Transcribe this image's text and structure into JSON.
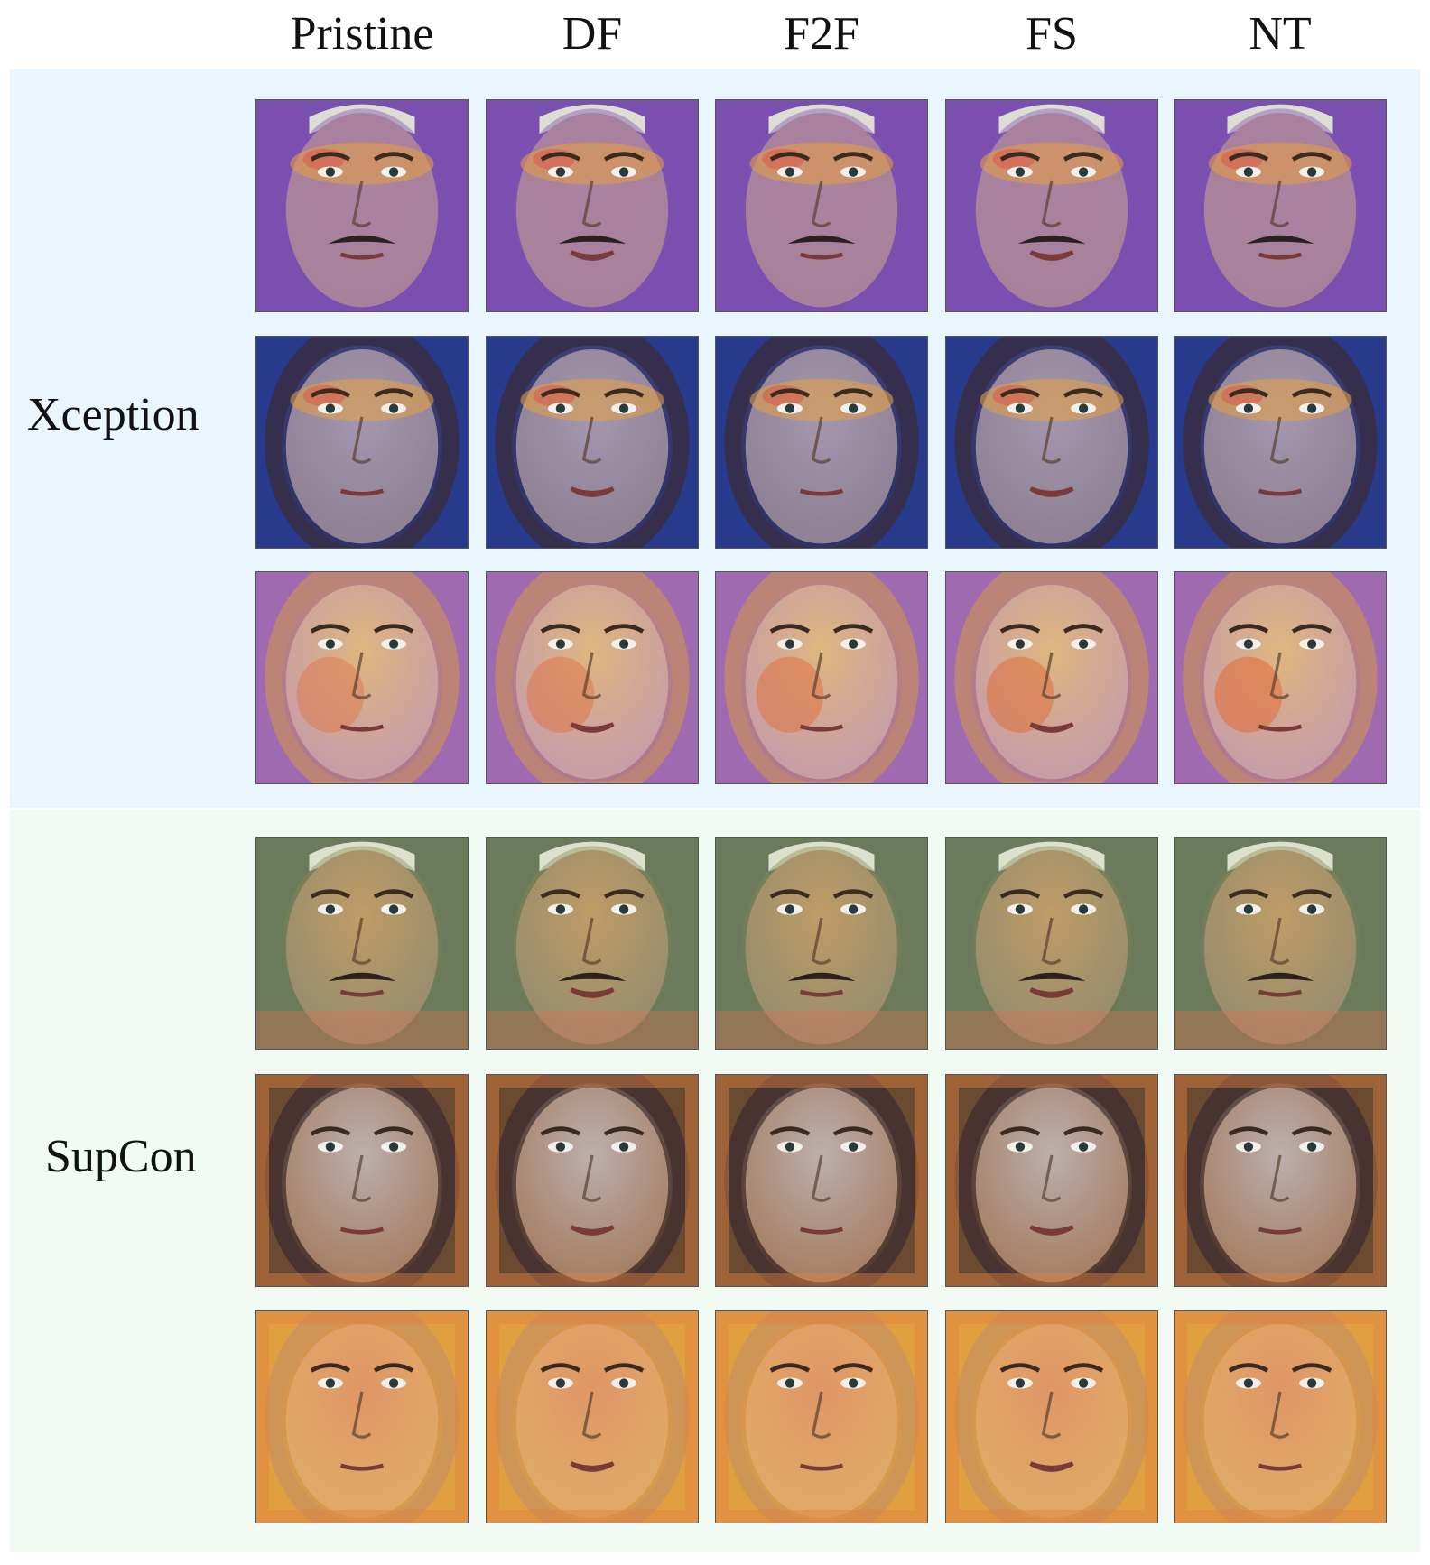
{
  "columns": [
    "Pristine",
    "DF",
    "F2F",
    "FS",
    "NT"
  ],
  "models": [
    {
      "name": "Xception",
      "rows": [
        {
          "face": "man-mustache",
          "skin": "#c7a48a",
          "tint": [
            "#7a4fb0",
            "#8a5bc0",
            "#a878c8"
          ],
          "hot": "eyes"
        },
        {
          "face": "woman-dark-hair",
          "skin": "#d8b49a",
          "tint": [
            "#283a8c",
            "#6a78c8",
            "#8fb0d8"
          ],
          "hot": "eyes"
        },
        {
          "face": "woman-blonde",
          "skin": "#e4c2a0",
          "tint": [
            "#a06ab0",
            "#d9a858",
            "#c87a9a"
          ],
          "hot": "cheeks"
        }
      ]
    },
    {
      "name": "SupCon",
      "rows": [
        {
          "face": "man-mustache",
          "skin": "#b89a7a",
          "tint": [
            "#6a7a5a",
            "#c8a050",
            "#d8b070"
          ],
          "hot": "chin"
        },
        {
          "face": "woman-dark-hair",
          "skin": "#d0a890",
          "tint": [
            "#6a4a30",
            "#a8b8d0",
            "#c87a50"
          ],
          "hot": "border"
        },
        {
          "face": "woman-blonde",
          "skin": "#e0b080",
          "tint": [
            "#e0a040",
            "#e07848",
            "#6a8a9a"
          ],
          "hot": "border"
        }
      ]
    }
  ]
}
